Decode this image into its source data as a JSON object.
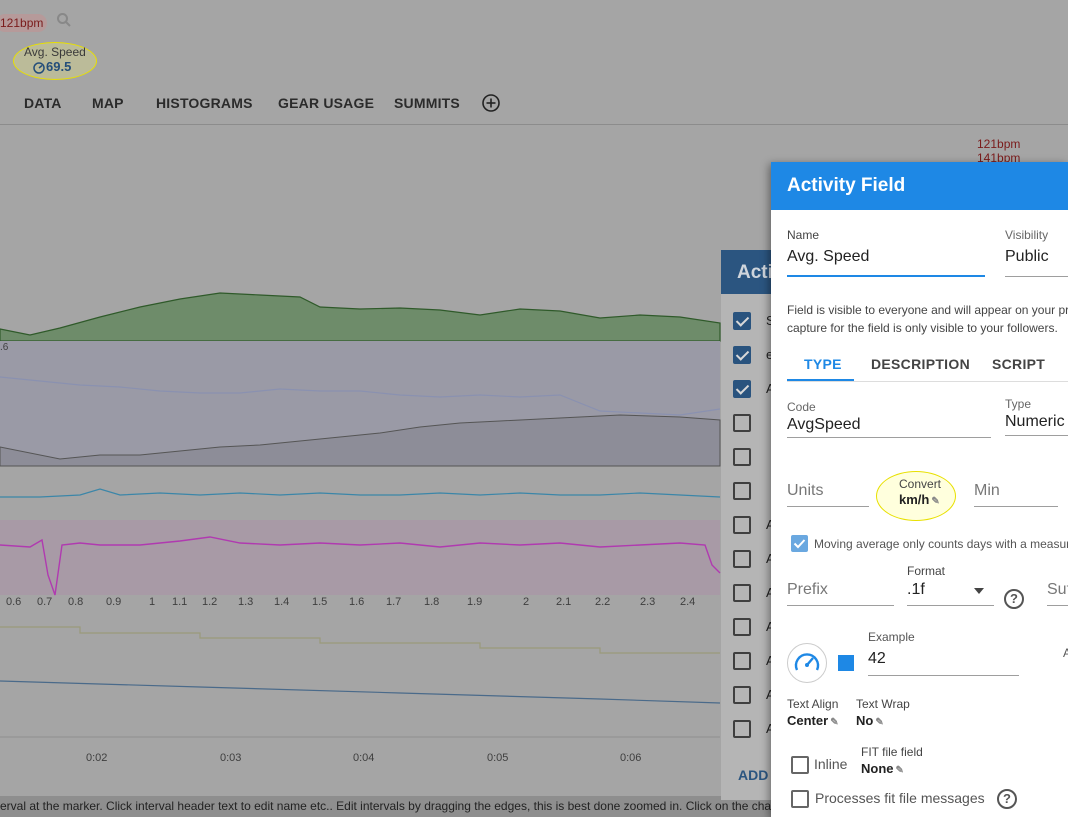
{
  "header": {
    "hr_badge": "121bpm",
    "avg_speed_label": "Avg. Speed",
    "avg_speed_value": "69.5"
  },
  "nav_tabs": [
    "DATA",
    "MAP",
    "HISTOGRAMS",
    "GEAR USAGE",
    "SUMMITS"
  ],
  "chart": {
    "hr_labels": [
      "121bpm",
      "141bpm"
    ],
    "edge_label": ".6",
    "distance_ticks": [
      "0.6",
      "0.7",
      "0.8",
      "0.9",
      "1",
      "1.1",
      "1.2",
      "1.3",
      "1.4",
      "1.5",
      "1.6",
      "1.7",
      "1.8",
      "1.9",
      "2",
      "2.1",
      "2.2",
      "2.3",
      "2.4"
    ],
    "time_ticks": [
      "0:02",
      "0:03",
      "0:04",
      "0:05",
      "0:06"
    ]
  },
  "status_bar": "erval at the marker. Click interval header text to edit name etc.. Edit intervals by dragging the edges, this is best done zoomed in. Click on the chart",
  "behind_dialog": {
    "title": "Acti",
    "add_button": "ADD",
    "row_letters": [
      "S",
      "e",
      "A",
      "",
      "",
      "",
      "A",
      "A",
      "A",
      "A",
      "A",
      "A",
      "A"
    ],
    "row_checked": [
      true,
      true,
      true,
      false,
      false,
      false,
      false,
      false,
      false,
      false,
      false,
      false,
      false
    ]
  },
  "dialog": {
    "title": "Activity Field",
    "name_label": "Name",
    "name_value": "Avg. Speed",
    "visibility_label": "Visibility",
    "visibility_value": "Public",
    "info_line1": "Field is visible to everyone and will appear on your pro",
    "info_line2": "capture for the field is only visible to your followers.",
    "tabs": [
      "TYPE",
      "DESCRIPTION",
      "SCRIPT"
    ],
    "code_label": "Code",
    "code_value": "AvgSpeed",
    "type_label": "Type",
    "type_value": "Numeric",
    "units_placeholder": "Units",
    "convert_label": "Convert",
    "convert_value": "km/h",
    "min_placeholder": "Min",
    "moving_avg_text": "Moving average only counts days with a measure",
    "prefix_placeholder": "Prefix",
    "format_label": "Format",
    "format_value": ".1f",
    "suffix_placeholder": "Suf",
    "example_label": "Example",
    "example_value": "42",
    "edge_letter": "A",
    "text_align_label": "Text Align",
    "text_align_value": "Center",
    "text_wrap_label": "Text Wrap",
    "text_wrap_value": "No",
    "inline_label": "Inline",
    "fit_label": "FIT file field",
    "fit_value": "None",
    "processes_fit_label": "Processes fit file messages",
    "help_glyph": "?"
  },
  "colors": {
    "accent": "#1e88e5",
    "hr": "#8b0000",
    "elevation": "#2e7d32",
    "power": "#c03fc0",
    "speed": "#3b86a8"
  }
}
